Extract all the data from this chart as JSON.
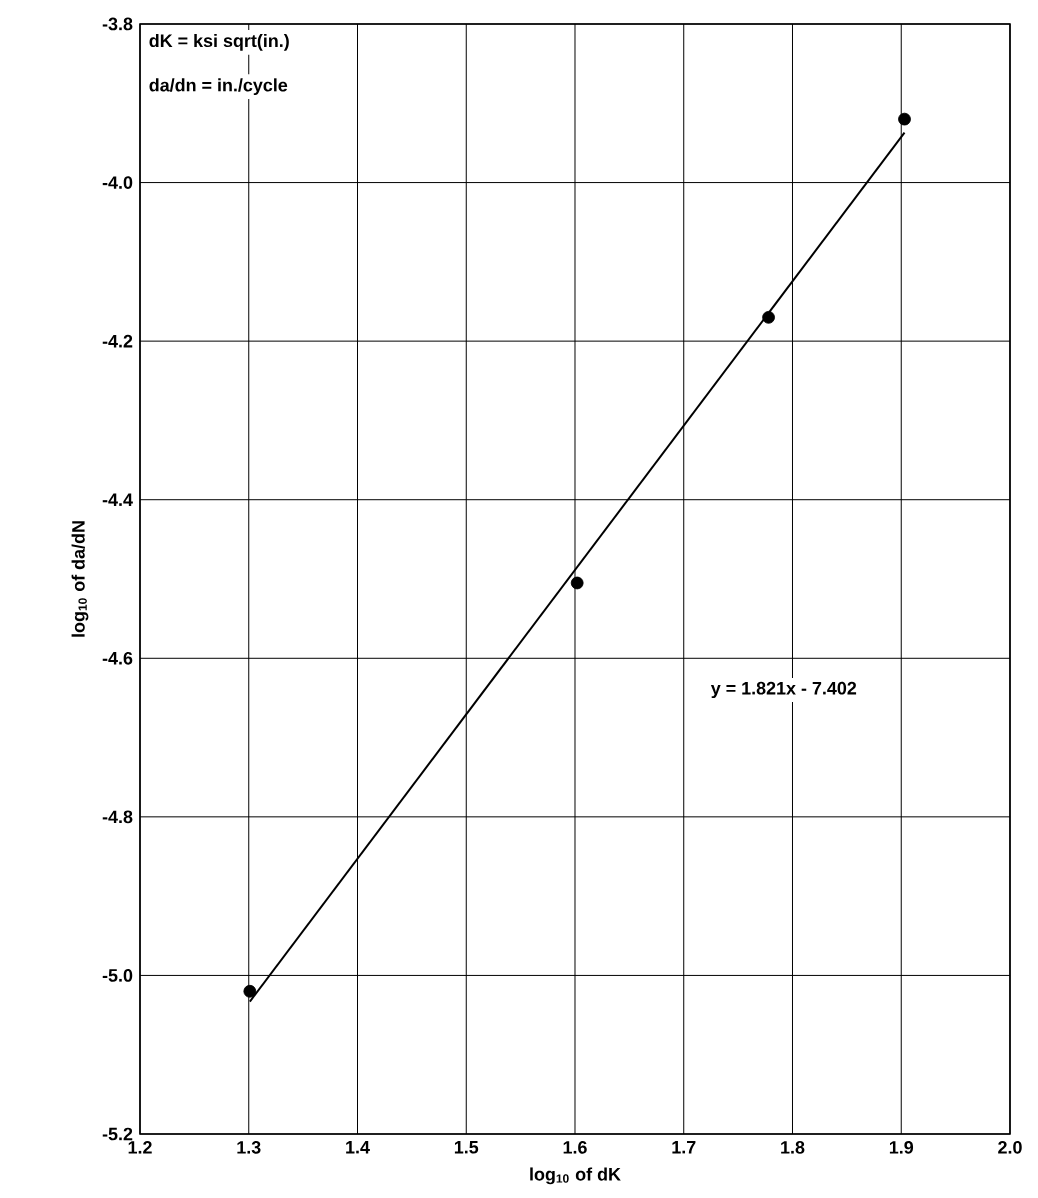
{
  "chart_data": {
    "type": "scatter",
    "xlabel": "log$_{10}$ of dK",
    "ylabel": "log$_{10}$ of da/dN",
    "x": [
      1.301,
      1.602,
      1.778,
      1.903
    ],
    "series": [
      {
        "color": "#000000",
        "values": [
          -5.02,
          -4.505,
          -4.17,
          -3.92
        ],
        "marker": "circle"
      },
      {
        "type": "line",
        "color": "#000000",
        "x": [
          1.301,
          1.903
        ],
        "values": [
          -5.033,
          -3.937
        ],
        "marker": "none",
        "line_style": "solid"
      }
    ],
    "xlim": [
      1.2,
      2.0
    ],
    "ylim": [
      -5.2,
      -3.8
    ],
    "xticks": [
      {
        "value": 1.2,
        "label": "1.2"
      },
      {
        "value": 1.3,
        "label": "1.3"
      },
      {
        "value": 1.4,
        "label": "1.4"
      },
      {
        "value": 1.5,
        "label": "1.5"
      },
      {
        "value": 1.6,
        "label": "1.6"
      },
      {
        "value": 1.7,
        "label": "1.7"
      },
      {
        "value": 1.8,
        "label": "1.8"
      },
      {
        "value": 1.9,
        "label": "1.9"
      },
      {
        "value": 2.0,
        "label": "2.0"
      }
    ],
    "yticks": [
      {
        "value": -5.2,
        "label": "-5.2"
      },
      {
        "value": -5.0,
        "label": "-5.0"
      },
      {
        "value": -4.8,
        "label": "-4.8"
      },
      {
        "value": -4.6,
        "label": "-4.6"
      },
      {
        "value": -4.4,
        "label": "-4.4"
      },
      {
        "value": -4.2,
        "label": "-4.2"
      },
      {
        "value": -4.0,
        "label": "-4.0"
      },
      {
        "value": -3.8,
        "label": "-3.8"
      }
    ],
    "grid": true,
    "annotations": [
      "dK = ksi sqrt(in.)",
      "da/dn = in./cycle",
      "y = 1.821x - 7.402"
    ]
  }
}
